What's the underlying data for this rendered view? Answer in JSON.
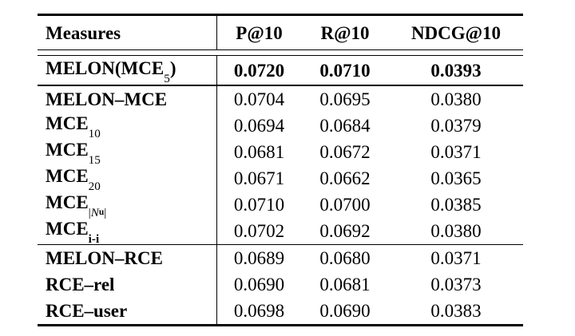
{
  "colors": {
    "text": "#000000",
    "background": "#ffffff",
    "rule": "#000000"
  },
  "table": {
    "columns": [
      "Measures",
      "P@10",
      "R@10",
      "NDCG@10"
    ],
    "groups": [
      {
        "rows": [
          {
            "label": [
              {
                "t": "MELON(MCE",
                "k": "b"
              },
              {
                "t": "5",
                "k": "sub"
              },
              {
                "t": ")",
                "k": "b"
              }
            ],
            "values": [
              "0.0720",
              "0.0710",
              "0.0393"
            ],
            "bold_values": true
          }
        ]
      },
      {
        "rows": [
          {
            "label": [
              {
                "t": "MELON–MCE",
                "k": "b"
              }
            ],
            "values": [
              "0.0704",
              "0.0695",
              "0.0380"
            ]
          },
          {
            "label": [
              {
                "t": "MCE",
                "k": "b"
              },
              {
                "t": "10",
                "k": "sub"
              }
            ],
            "values": [
              "0.0694",
              "0.0684",
              "0.0379"
            ]
          },
          {
            "label": [
              {
                "t": "MCE",
                "k": "b"
              },
              {
                "t": "15",
                "k": "sub"
              }
            ],
            "values": [
              "0.0681",
              "0.0672",
              "0.0371"
            ]
          },
          {
            "label": [
              {
                "t": "MCE",
                "k": "b"
              },
              {
                "t": "20",
                "k": "sub"
              }
            ],
            "values": [
              "0.0671",
              "0.0662",
              "0.0365"
            ]
          },
          {
            "label": [
              {
                "t": "MCE",
                "k": "b"
              },
              {
                "t": "|",
                "k": "sub"
              },
              {
                "t": "N",
                "k": "subcal"
              },
              {
                "t": "u",
                "k": "subsub"
              },
              {
                "t": "|",
                "k": "sub"
              }
            ],
            "values": [
              "0.0710",
              "0.0700",
              "0.0385"
            ]
          },
          {
            "label": [
              {
                "t": "MCE",
                "k": "b"
              },
              {
                "t": "i-i",
                "k": "subb"
              }
            ],
            "values": [
              "0.0702",
              "0.0692",
              "0.0380"
            ]
          }
        ]
      },
      {
        "rows": [
          {
            "label": [
              {
                "t": "MELON–RCE",
                "k": "b"
              }
            ],
            "values": [
              "0.0689",
              "0.0680",
              "0.0371"
            ]
          },
          {
            "label": [
              {
                "t": "RCE–rel",
                "k": "b"
              }
            ],
            "values": [
              "0.0690",
              "0.0681",
              "0.0373"
            ]
          },
          {
            "label": [
              {
                "t": "RCE–user",
                "k": "b"
              }
            ],
            "values": [
              "0.0698",
              "0.0690",
              "0.0383"
            ]
          }
        ]
      }
    ]
  }
}
